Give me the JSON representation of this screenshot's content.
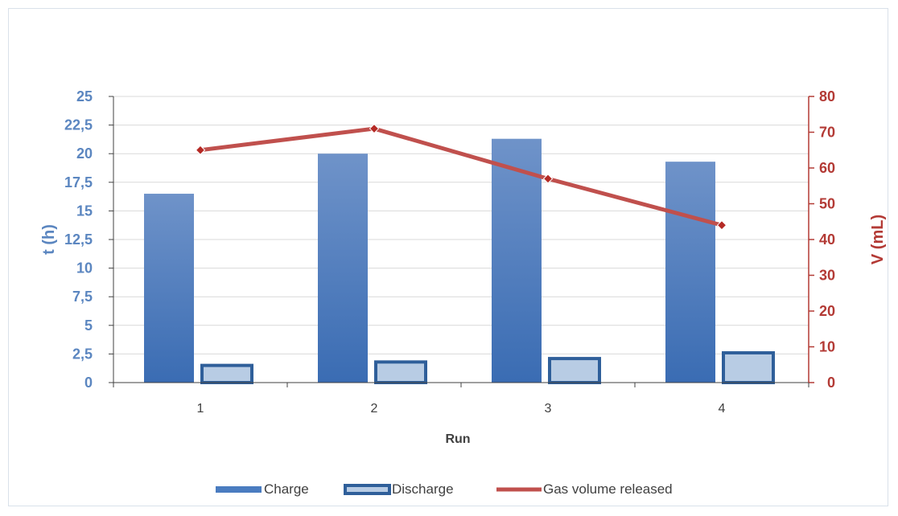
{
  "chart_data": {
    "type": "bar",
    "categories": [
      "1",
      "2",
      "3",
      "4"
    ],
    "series": [
      {
        "name": "Charge",
        "type": "bar",
        "axis": "left",
        "values": [
          16.5,
          20.0,
          21.3,
          19.3
        ],
        "color": "#4a7cc0"
      },
      {
        "name": "Discharge",
        "type": "bar",
        "axis": "left",
        "values": [
          1.5,
          1.8,
          2.1,
          2.6
        ],
        "color": "#b8cce4",
        "border": "#2f5f9a"
      },
      {
        "name": "Gas volume released",
        "type": "line",
        "axis": "right",
        "values": [
          65,
          71,
          57,
          44
        ],
        "color": "#c0504d",
        "marker_color": "#b52a25"
      }
    ],
    "xlabel": "Run",
    "ylabel": "t (h)",
    "y2label": "V (mL)",
    "ylim": [
      0,
      25
    ],
    "y2lim": [
      0,
      80
    ],
    "yticks": [
      "0",
      "2,5",
      "5",
      "7,5",
      "10",
      "12,5",
      "15",
      "17,5",
      "20",
      "22,5",
      "25"
    ],
    "y2ticks": [
      "0",
      "10",
      "20",
      "30",
      "40",
      "50",
      "60",
      "70",
      "80"
    ],
    "grid": true,
    "legend_position": "bottom",
    "colors": {
      "left_axis": "#5b86c0",
      "right_axis": "#b33a35",
      "grid": "#d9d9d9"
    }
  }
}
